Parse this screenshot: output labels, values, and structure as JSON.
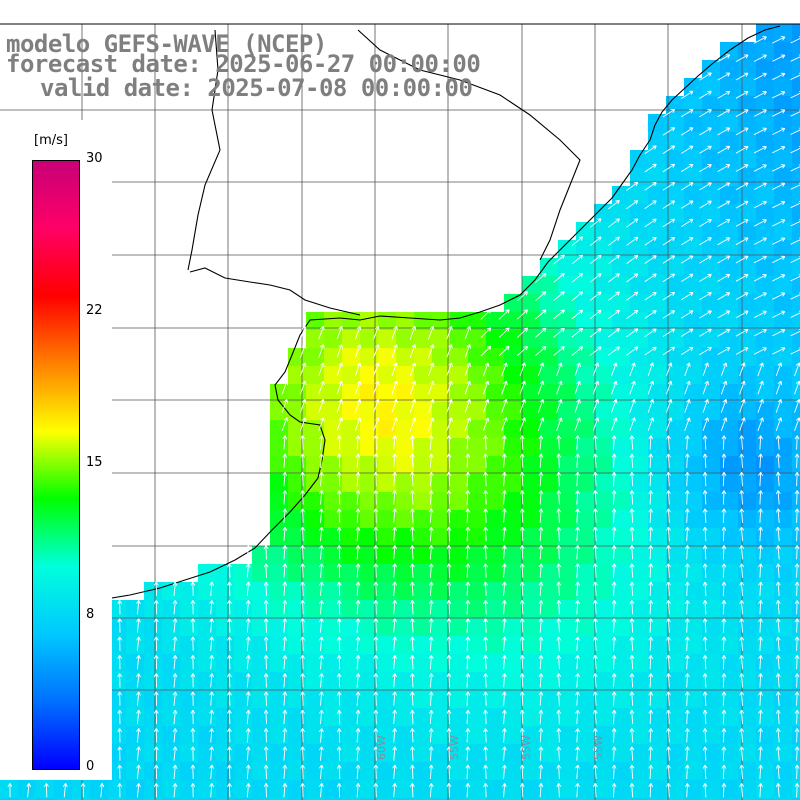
{
  "title": {
    "line1": "modelo GEFS-WAVE (NCEP)",
    "line2": "forecast date: 2025-06-27 00:00:00",
    "line3": "valid date: 2025-07-08 00:00:00"
  },
  "colorbar": {
    "unit_label": "[m/s]",
    "tick_labels": [
      "30",
      "22",
      "15",
      "8",
      "0"
    ],
    "min": 0,
    "max": 30,
    "stops": [
      "#0000ff",
      "#0070ff",
      "#00c8ff",
      "#00ffdc",
      "#00ff00",
      "#ffff00",
      "#ff8000",
      "#ff0000",
      "#ff0066",
      "#c80078"
    ]
  },
  "map": {
    "variable": "wind speed",
    "units": "m/s",
    "land_color": "#ffffff",
    "grid_color": "#555555",
    "coast_color": "#000000",
    "arrow_color": "#ffffff",
    "longitude_labels": [
      "60W",
      "55W",
      "55W",
      "55W"
    ],
    "notable_region": "peak wind ~17 m/s off the river estuary; weaker (~5 m/s) bands offshore to the east"
  }
}
